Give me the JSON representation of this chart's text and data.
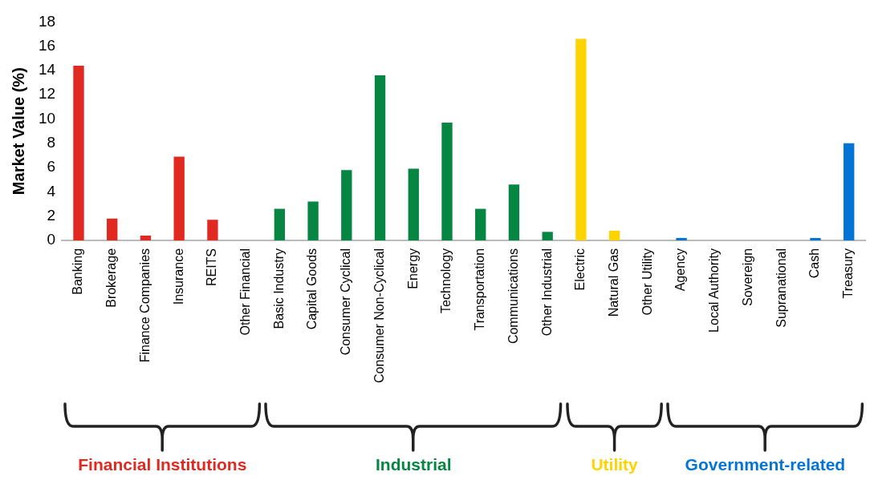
{
  "chart_data": {
    "type": "bar",
    "ylabel": "Market Value (%)",
    "categories": [
      "Banking",
      "Brokerage",
      "Finance Companies",
      "Insurance",
      "REITS",
      "Other Financial",
      "Basic Industry",
      "Capital Goods",
      "Consumer Cyclical",
      "Consumer Non-Cyclical",
      "Energy",
      "Technology",
      "Transportation",
      "Communications",
      "Other Industrial",
      "Electric",
      "Natural Gas",
      "Other Utility",
      "Agency",
      "Local Authority",
      "Sovereign",
      "Supranational",
      "Cash",
      "Treasury"
    ],
    "series": [
      {
        "name": "Financial Institutions",
        "color": "#e02a21",
        "values": [
          14.4,
          1.8,
          0.4,
          6.9,
          1.7,
          0,
          null,
          null,
          null,
          null,
          null,
          null,
          null,
          null,
          null,
          null,
          null,
          null,
          null,
          null,
          null,
          null,
          null,
          null
        ]
      },
      {
        "name": "Industrial",
        "color": "#078542",
        "values": [
          null,
          null,
          null,
          null,
          null,
          null,
          2.6,
          3.2,
          5.8,
          13.6,
          5.9,
          9.7,
          2.6,
          4.6,
          0.7,
          null,
          null,
          null,
          null,
          null,
          null,
          null,
          null,
          null
        ]
      },
      {
        "name": "Utility",
        "color": "#fdd300",
        "values": [
          null,
          null,
          null,
          null,
          null,
          null,
          null,
          null,
          null,
          null,
          null,
          null,
          null,
          null,
          null,
          16.6,
          0.8,
          0,
          null,
          null,
          null,
          null,
          null,
          null
        ]
      },
      {
        "name": "Government-related",
        "color": "#0374d6",
        "values": [
          null,
          null,
          null,
          null,
          null,
          null,
          null,
          null,
          null,
          null,
          null,
          null,
          null,
          null,
          null,
          null,
          null,
          null,
          0.2,
          0,
          0,
          0,
          0.2,
          8.0
        ]
      }
    ],
    "ylim": [
      0,
      18
    ],
    "yticks": [
      0,
      2,
      4,
      6,
      8,
      10,
      12,
      14,
      16,
      18
    ],
    "grid": false,
    "legend": false
  }
}
